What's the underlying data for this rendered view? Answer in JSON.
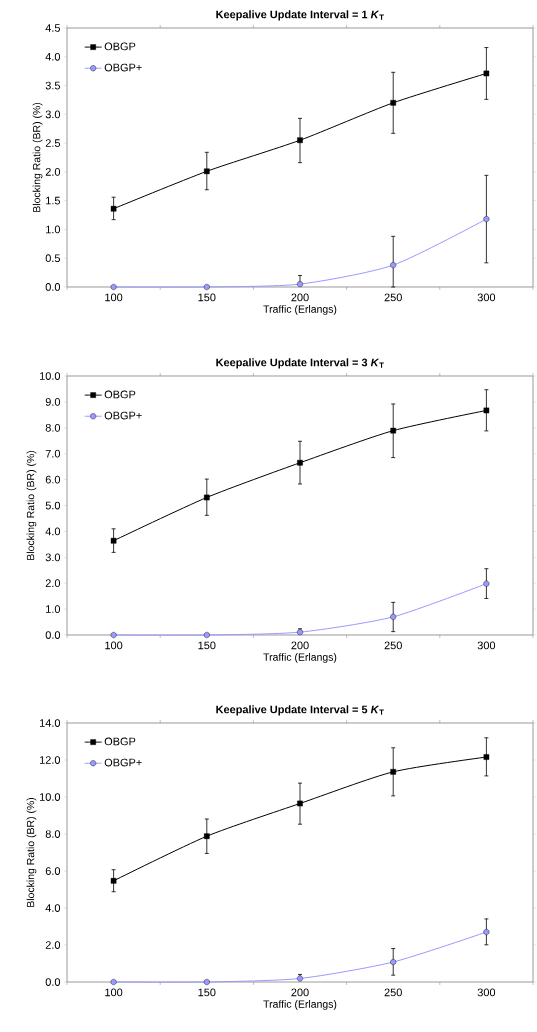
{
  "chart_data": [
    {
      "type": "line",
      "title": "Keepalive Update Interval = 1 *K*$_{T}$",
      "xlabel": "Traffic (Erlangs)",
      "ylabel": "Blocking Ratio (BR) (%)",
      "categories": [
        "100",
        "150",
        "200",
        "250",
        "300"
      ],
      "ylim": [
        0,
        4.5
      ],
      "yticks": [
        {
          "value": 0,
          "label": "0.0"
        },
        {
          "value": 0.5,
          "label": "0.5"
        },
        {
          "value": 1,
          "label": "1.0"
        },
        {
          "value": 1.5,
          "label": "1.5"
        },
        {
          "value": 2,
          "label": "2.0"
        },
        {
          "value": 2.5,
          "label": "2.5"
        },
        {
          "value": 3,
          "label": "3.0"
        },
        {
          "value": 3.5,
          "label": "3.5"
        },
        {
          "value": 4,
          "label": "4.0"
        },
        {
          "value": 4.5,
          "label": "4.5"
        }
      ],
      "legend": "top left",
      "series": [
        {
          "name": "OBGP",
          "color": "#000000",
          "marker": "square",
          "values": [
            1.36,
            2.01,
            2.55,
            3.2,
            3.71
          ],
          "errors": [
            [
              1.17,
              1.56
            ],
            [
              1.69,
              2.34
            ],
            [
              2.16,
              2.93
            ],
            [
              2.67,
              3.73
            ],
            [
              3.26,
              4.16
            ]
          ]
        },
        {
          "name": "OBGP+",
          "color": "#9999ff",
          "marker": "circle",
          "values": [
            0,
            0,
            0.05,
            0.38,
            1.18
          ],
          "errors": [
            null,
            null,
            [
              0.05,
              0.2
            ],
            [
              0,
              0.88
            ],
            [
              0.42,
              1.94
            ]
          ]
        }
      ]
    },
    {
      "type": "line",
      "title": "Keepalive Update Interval = 3 *K*$_{T}$",
      "xlabel": "Traffic (Erlangs)",
      "ylabel": "Blocking Ratio (BR) (%)",
      "categories": [
        "100",
        "150",
        "200",
        "250",
        "300"
      ],
      "ylim": [
        0,
        10
      ],
      "yticks": [
        {
          "value": 0,
          "label": "0.0"
        },
        {
          "value": 1,
          "label": "1.0"
        },
        {
          "value": 2,
          "label": "2.0"
        },
        {
          "value": 3,
          "label": "3.0"
        },
        {
          "value": 4,
          "label": "4.0"
        },
        {
          "value": 5,
          "label": "5.0"
        },
        {
          "value": 6,
          "label": "6.0"
        },
        {
          "value": 7,
          "label": "7.0"
        },
        {
          "value": 8,
          "label": "8.0"
        },
        {
          "value": 9,
          "label": "9.0"
        },
        {
          "value": 10,
          "label": "10.0"
        }
      ],
      "legend": "top left",
      "series": [
        {
          "name": "OBGP",
          "color": "#000000",
          "marker": "square",
          "values": [
            3.64,
            5.31,
            6.65,
            7.89,
            8.67
          ],
          "errors": [
            [
              3.19,
              4.1
            ],
            [
              4.62,
              6.02
            ],
            [
              5.83,
              7.48
            ],
            [
              6.85,
              8.92
            ],
            [
              7.88,
              9.47
            ]
          ]
        },
        {
          "name": "OBGP+",
          "color": "#9999ff",
          "marker": "circle",
          "values": [
            0,
            0,
            0.11,
            0.7,
            1.98
          ],
          "errors": [
            null,
            null,
            [
              0.11,
              0.24
            ],
            [
              0.13,
              1.26
            ],
            [
              1.41,
              2.56
            ]
          ]
        }
      ]
    },
    {
      "type": "line",
      "title": "Keepalive Update Interval = 5 *K*$_{T}$",
      "xlabel": "Traffic (Erlangs)",
      "ylabel": "Blocking Ratio (BR) (%)",
      "categories": [
        "100",
        "150",
        "200",
        "250",
        "300"
      ],
      "ylim": [
        0,
        14
      ],
      "yticks": [
        {
          "value": 0,
          "label": "0.0"
        },
        {
          "value": 2,
          "label": "2.0"
        },
        {
          "value": 4,
          "label": "4.0"
        },
        {
          "value": 6,
          "label": "6.0"
        },
        {
          "value": 8,
          "label": "8.0"
        },
        {
          "value": 10,
          "label": "10.0"
        },
        {
          "value": 12,
          "label": "12.0"
        },
        {
          "value": 14,
          "label": "14.0"
        }
      ],
      "legend": "top left",
      "series": [
        {
          "name": "OBGP",
          "color": "#000000",
          "marker": "square",
          "values": [
            5.47,
            7.88,
            9.65,
            11.36,
            12.16
          ],
          "errors": [
            [
              4.88,
              6.07
            ],
            [
              6.95,
              8.81
            ],
            [
              8.53,
              10.75
            ],
            [
              10.06,
              12.66
            ],
            [
              11.14,
              13.2
            ]
          ]
        },
        {
          "name": "OBGP+",
          "color": "#9999ff",
          "marker": "circle",
          "values": [
            0,
            0,
            0.19,
            1.08,
            2.7
          ],
          "errors": [
            null,
            null,
            [
              0.19,
              0.41
            ],
            [
              0.37,
              1.81
            ],
            [
              2.01,
              3.41
            ]
          ]
        }
      ]
    }
  ]
}
